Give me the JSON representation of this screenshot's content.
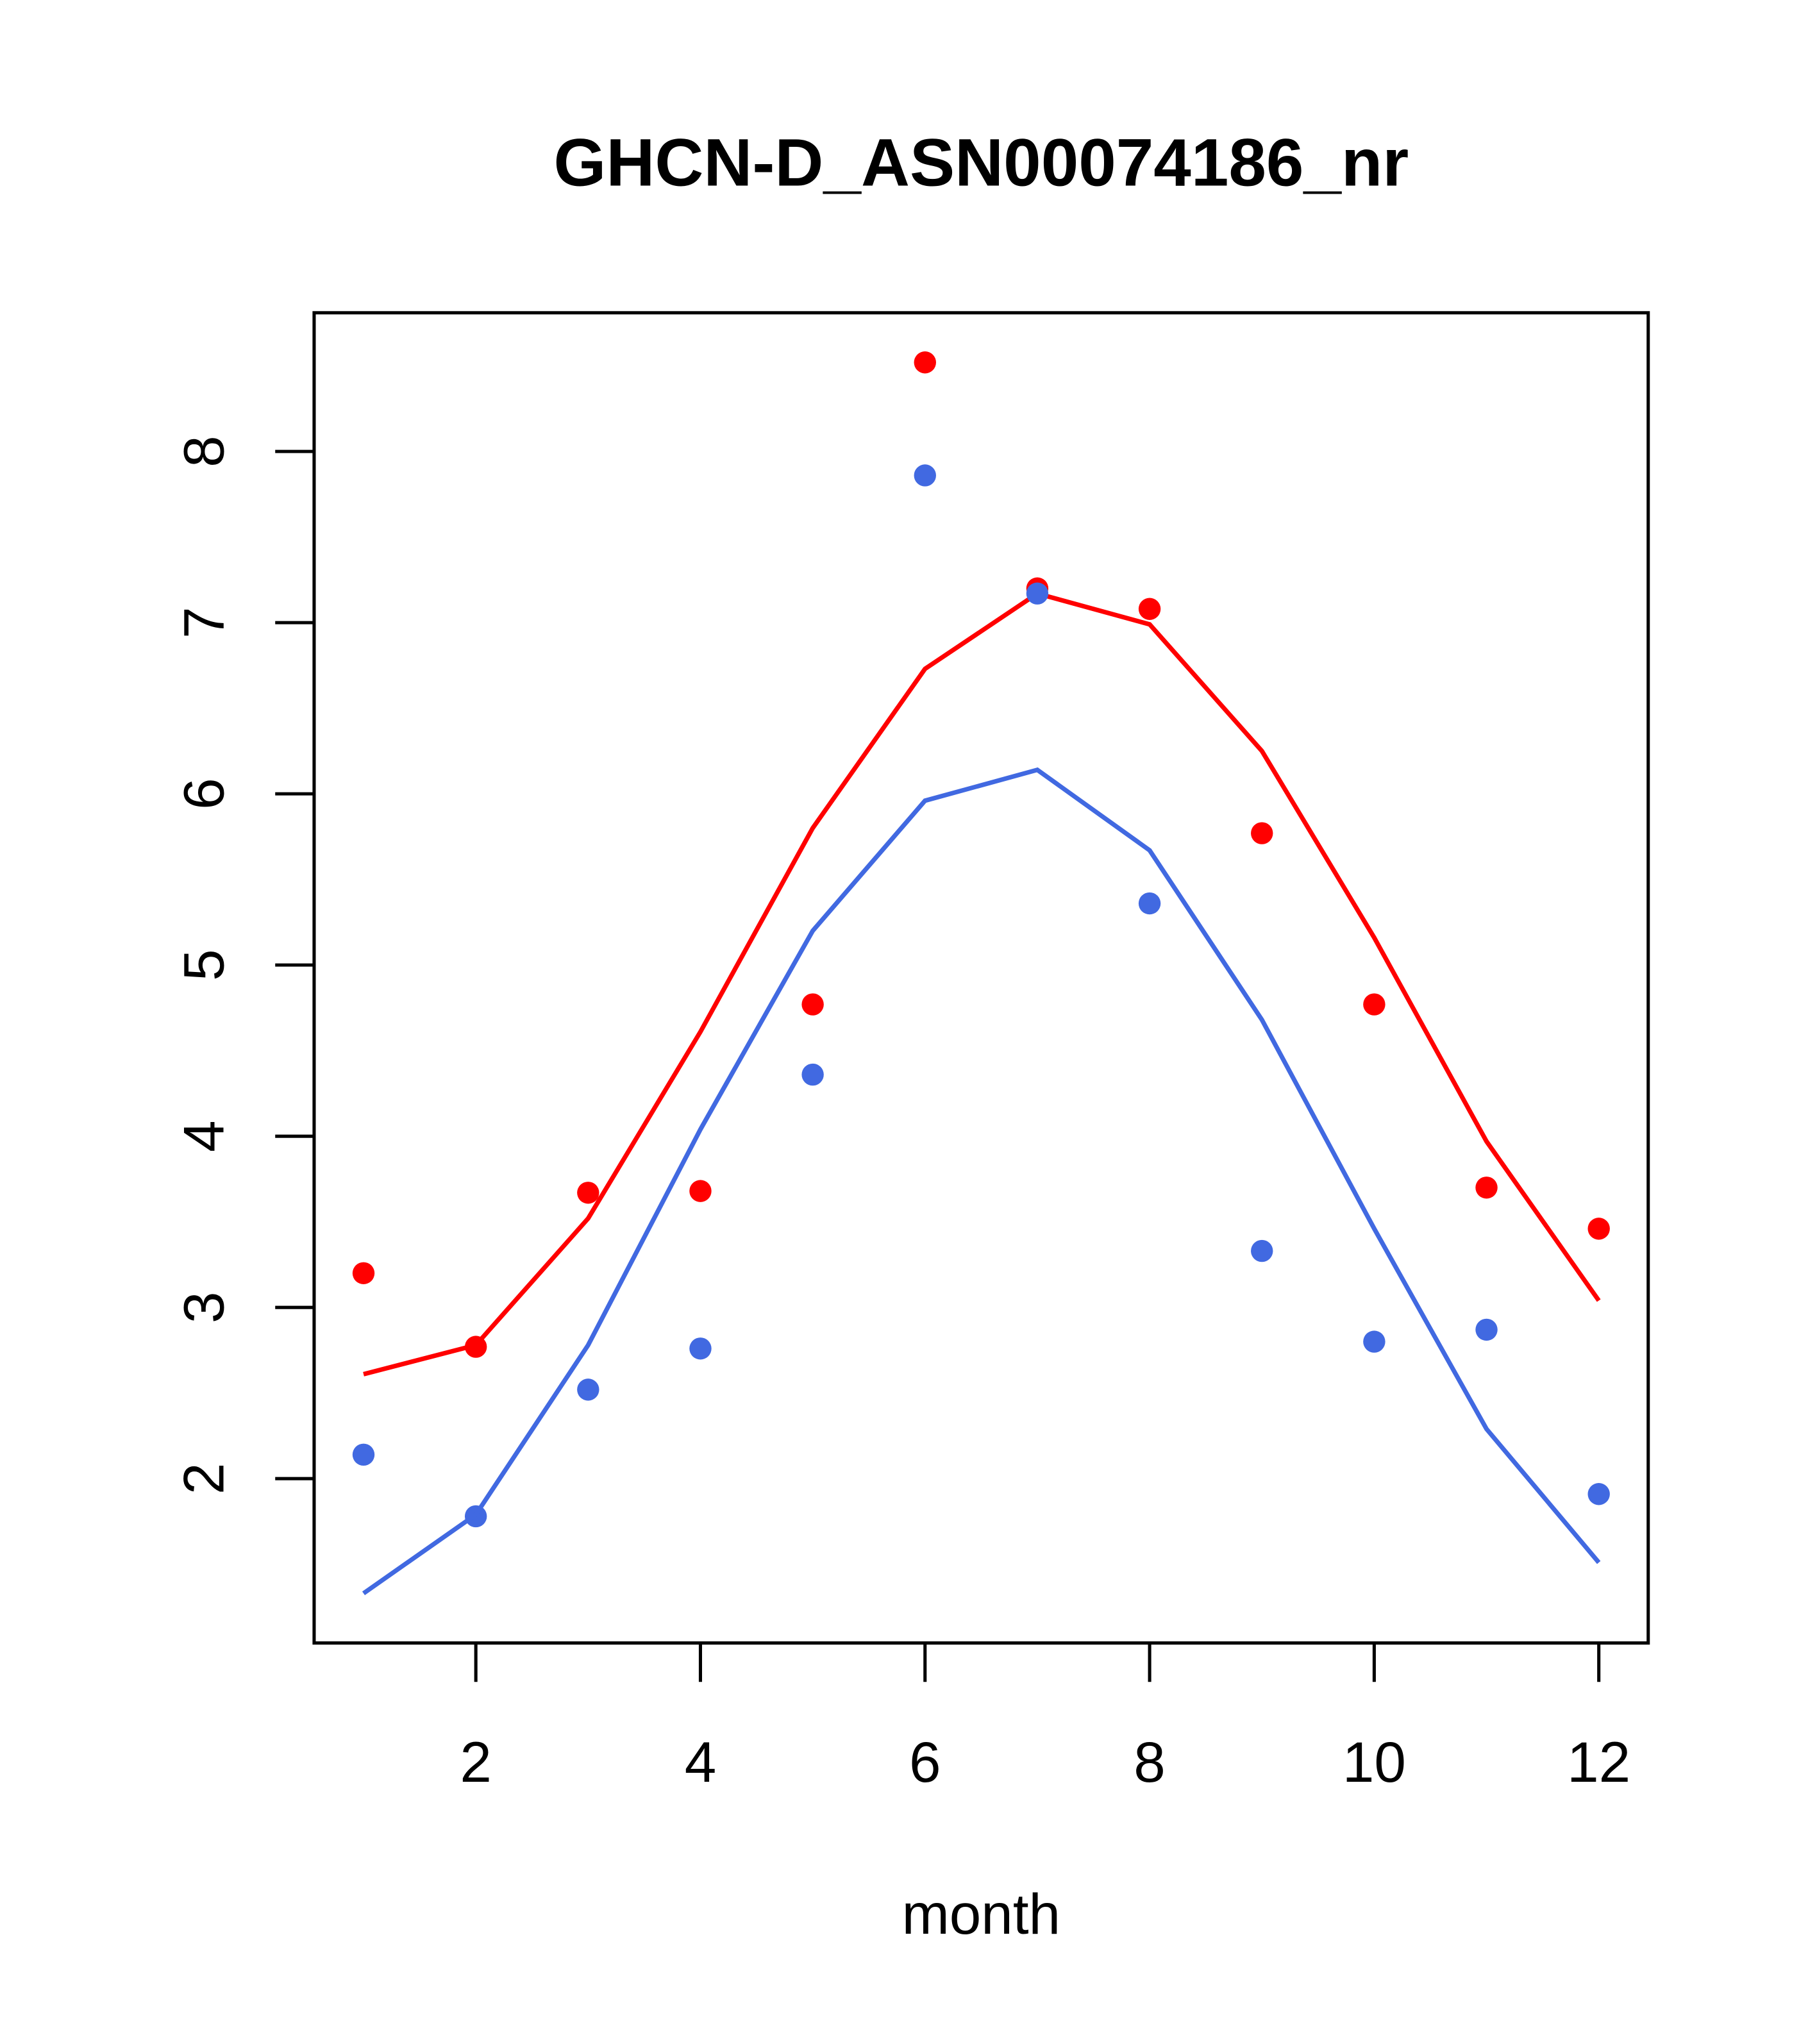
{
  "chart_data": {
    "type": "line",
    "title": "GHCN-D_ASN00074186_nr",
    "xlabel": "month",
    "ylabel": "",
    "xlim": [
      0.56,
      12.44
    ],
    "ylim": [
      1.04,
      8.81
    ],
    "x_ticks": [
      2,
      4,
      6,
      8,
      10,
      12
    ],
    "y_ticks": [
      2,
      3,
      4,
      5,
      6,
      7,
      8
    ],
    "grid": false,
    "x": [
      1,
      2,
      3,
      4,
      5,
      6,
      7,
      8,
      9,
      10,
      11,
      12
    ],
    "series": [
      {
        "name": "red points",
        "kind": "points",
        "color": "#ff0000",
        "values": [
          3.2,
          2.77,
          3.67,
          3.68,
          4.77,
          8.52,
          7.2,
          7.08,
          5.77,
          4.77,
          3.7,
          3.46
        ]
      },
      {
        "name": "red line",
        "kind": "line",
        "color": "#ff0000",
        "values": [
          2.61,
          2.78,
          3.52,
          4.61,
          5.8,
          6.73,
          7.17,
          6.99,
          6.25,
          5.16,
          3.97,
          3.04
        ]
      },
      {
        "name": "blue points",
        "kind": "points",
        "color": "#4169e1",
        "values": [
          2.14,
          1.78,
          2.52,
          2.76,
          4.36,
          7.86,
          7.17,
          5.36,
          3.33,
          2.8,
          2.87,
          1.91
        ]
      },
      {
        "name": "blue line",
        "kind": "line",
        "color": "#4169e1",
        "values": [
          1.33,
          1.79,
          2.78,
          4.04,
          5.2,
          5.96,
          6.14,
          5.67,
          4.68,
          3.46,
          2.29,
          1.51
        ]
      }
    ]
  }
}
